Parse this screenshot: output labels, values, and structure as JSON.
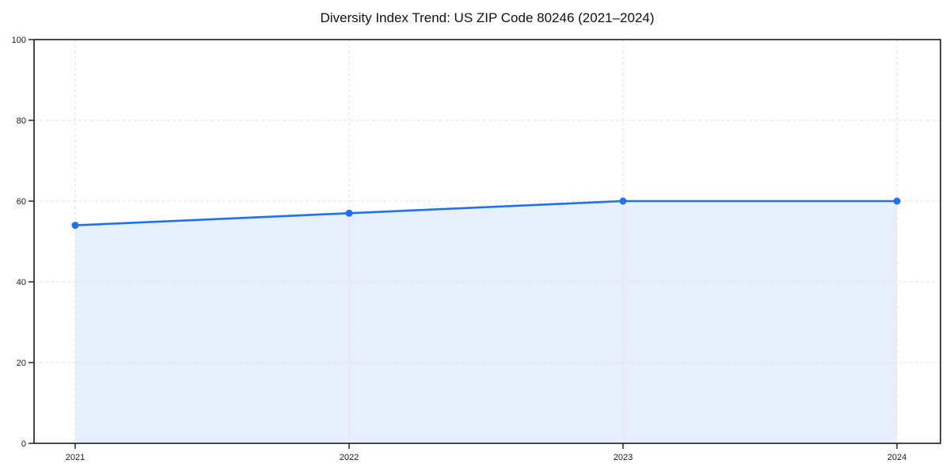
{
  "chart_data": {
    "type": "line",
    "title": "Diversity Index Trend: US ZIP Code 80246 (2021–2024)",
    "categories": [
      "2021",
      "2022",
      "2023",
      "2024"
    ],
    "series": [
      {
        "name": "Diversity Index",
        "values": [
          54,
          57,
          60,
          60
        ]
      }
    ],
    "xlabel": "",
    "ylabel": "",
    "ylim": [
      0,
      100
    ],
    "yticks": [
      0,
      20,
      40,
      60,
      80,
      100
    ],
    "grid": true,
    "grid_style": "dashed",
    "legend": false,
    "area_fill": true,
    "marker": "circle",
    "colors": {
      "line": "#2071ee",
      "marker": "#2071ee",
      "area": "#e7effc",
      "grid": "#e2e2e2",
      "axis": "#1a1a1a",
      "text": "#1a1a1a",
      "background": "#ffffff"
    }
  }
}
